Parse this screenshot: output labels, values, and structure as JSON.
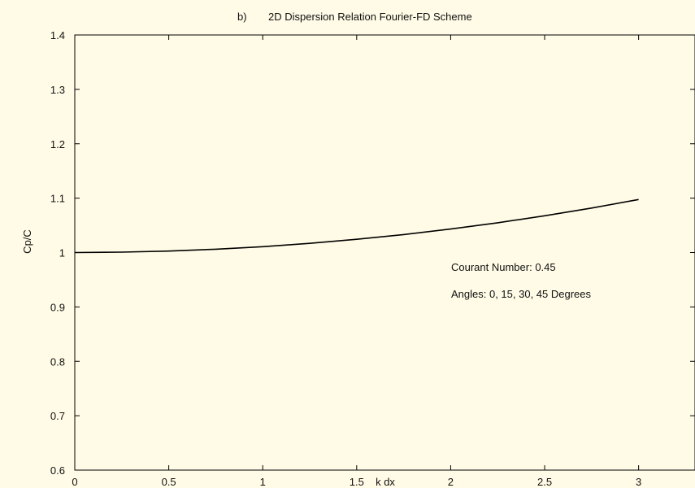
{
  "chart_data": {
    "type": "line",
    "title_prefix": "b)",
    "title": "2D Dispersion Relation Fourier-FD Scheme",
    "xlabel": "k dx",
    "ylabel": "Cp/C",
    "xlim": [
      0,
      3.3
    ],
    "ylim": [
      0.6,
      1.4
    ],
    "xticks": [
      0,
      0.5,
      1,
      1.5,
      2,
      2.5,
      3
    ],
    "xtick_labels": [
      "0",
      "0.5",
      "1",
      "1.5",
      "2",
      "2.5",
      "3"
    ],
    "yticks": [
      0.6,
      0.7,
      0.8,
      0.9,
      1.0,
      1.1,
      1.2,
      1.3,
      1.4
    ],
    "ytick_labels": [
      "0.6",
      "0.7",
      "0.8",
      "0.9",
      "1",
      "1.1",
      "1.2",
      "1.3",
      "1.4"
    ],
    "grid": false,
    "annotations": [
      "Courant Number: 0.45",
      "Angles: 0, 15, 30, 45 Degrees"
    ],
    "series": [
      {
        "color": "#000000",
        "x": [
          0,
          0.25,
          0.5,
          0.75,
          1.0,
          1.25,
          1.5,
          1.75,
          2.0,
          2.25,
          2.5,
          2.75,
          3.0
        ],
        "y": [
          1.0,
          1.0007,
          1.0027,
          1.0061,
          1.0108,
          1.0169,
          1.0243,
          1.0331,
          1.0432,
          1.0547,
          1.0676,
          1.0818,
          1.0975
        ]
      }
    ]
  }
}
